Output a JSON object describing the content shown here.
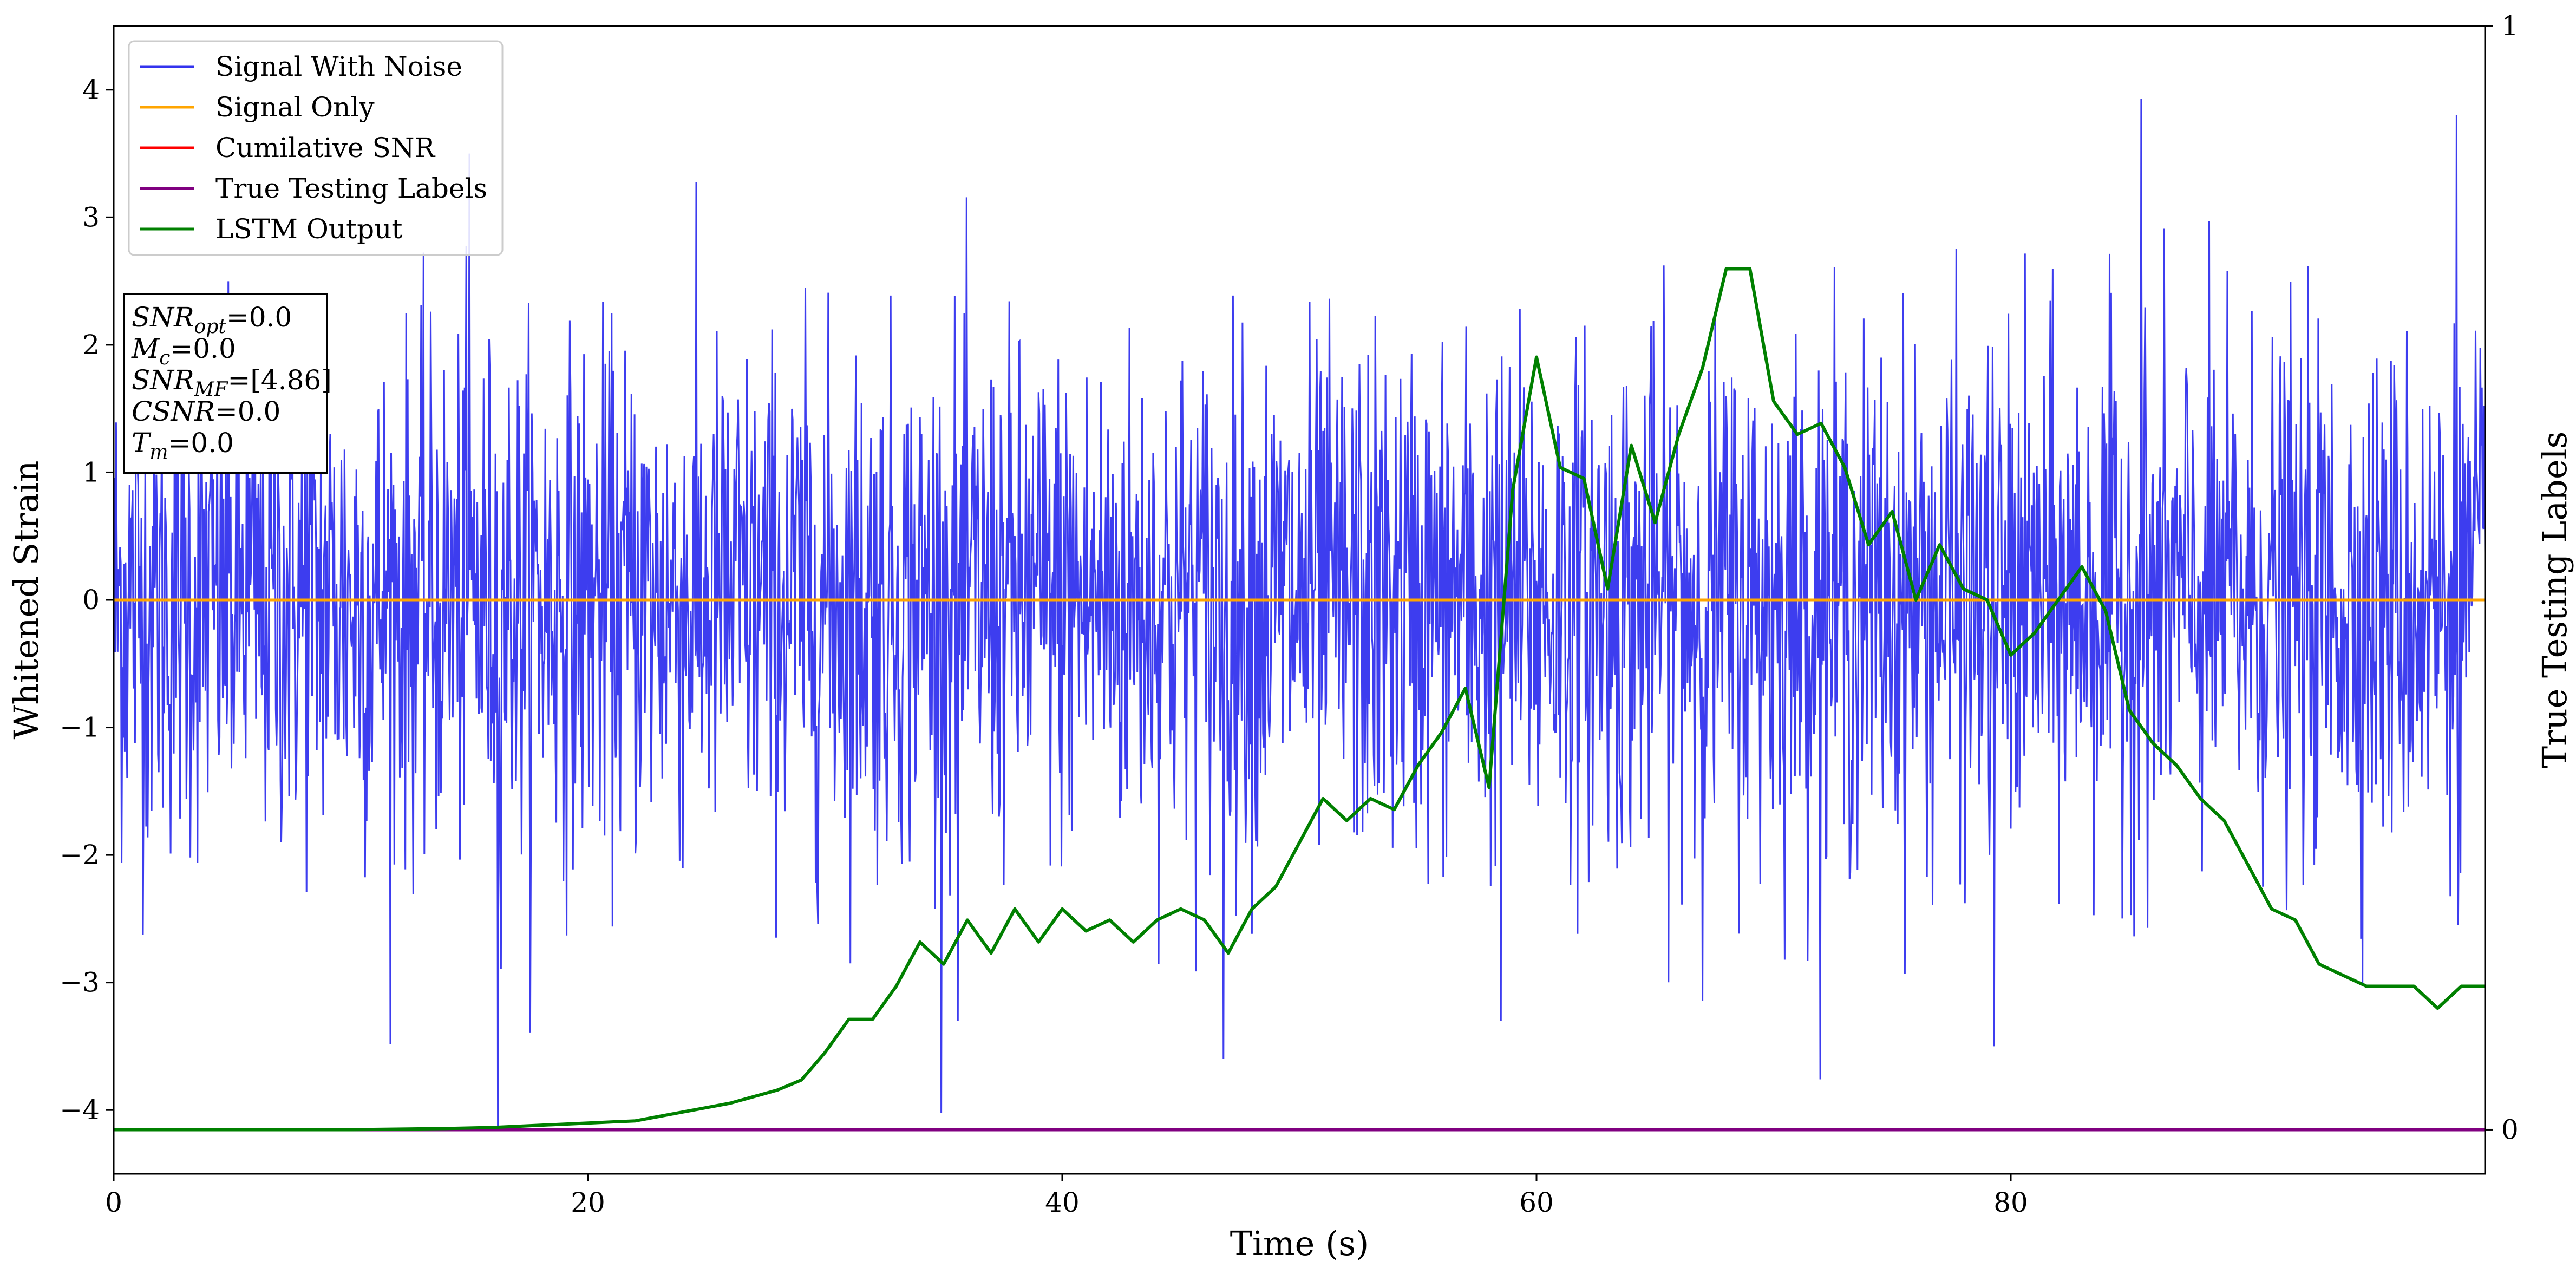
{
  "chart_data": {
    "type": "line",
    "xlabel": "Time (s)",
    "ylabel": "Whitened Strain",
    "y2label": "True Testing Labels",
    "xlim": [
      0,
      100
    ],
    "ylim": [
      -4.5,
      4.5
    ],
    "y2lim": [
      -0.04,
      1.0
    ],
    "x_ticks": [
      0,
      20,
      40,
      60,
      80
    ],
    "y_ticks": [
      -4,
      -3,
      -2,
      -1,
      0,
      1,
      2,
      3,
      4
    ],
    "y2_ticks": [
      0,
      1
    ],
    "grid": false,
    "legend_position": "top-left",
    "series": [
      {
        "name": "Signal With Noise",
        "color": "#3333ee",
        "axis": "left",
        "sample_rate_hz": 30,
        "amplitude_envelope": [
          -4.15,
          3.93
        ],
        "note_values": "dense noise around 0, mostly within ±2.7 with spikes near t=16.2 (-4.15), t=85.5 (3.93), t=79.3 (-3.5), t=46.8 (-3.6)"
      },
      {
        "name": "Signal Only",
        "color": "#ffa500",
        "axis": "left",
        "x": [
          0,
          100
        ],
        "y": [
          0,
          0
        ]
      },
      {
        "name": "Cumilative SNR",
        "color": "#ff0000",
        "axis": "right",
        "x": [],
        "y": []
      },
      {
        "name": "True Testing Labels",
        "color": "#800080",
        "axis": "right",
        "x": [
          0,
          100
        ],
        "y": [
          0,
          0
        ]
      },
      {
        "name": "LSTM Output",
        "color": "#008000",
        "axis": "right",
        "x": [
          0,
          10,
          14,
          16,
          18,
          20,
          22,
          23,
          24,
          25,
          26,
          27,
          28,
          29,
          30,
          31,
          32,
          33,
          34,
          35,
          36,
          37,
          38,
          39,
          40,
          41,
          42,
          43,
          44,
          45,
          46,
          47,
          48,
          49,
          50,
          51,
          52,
          53,
          54,
          55,
          56,
          57,
          58,
          59,
          60,
          61,
          62,
          63,
          64,
          65,
          66,
          67,
          68,
          69,
          70,
          71,
          72,
          73,
          74,
          75,
          76,
          77,
          78,
          79,
          80,
          81,
          82,
          83,
          84,
          85,
          86,
          87,
          88,
          89,
          90,
          91,
          92,
          93,
          94,
          95,
          96,
          97,
          98,
          99,
          100
        ],
        "y": [
          0.0,
          0.0,
          0.001,
          0.002,
          0.004,
          0.006,
          0.008,
          0.012,
          0.016,
          0.02,
          0.024,
          0.03,
          0.036,
          0.045,
          0.07,
          0.1,
          0.1,
          0.13,
          0.17,
          0.15,
          0.19,
          0.16,
          0.2,
          0.17,
          0.2,
          0.18,
          0.19,
          0.17,
          0.19,
          0.2,
          0.19,
          0.16,
          0.2,
          0.22,
          0.26,
          0.3,
          0.28,
          0.3,
          0.29,
          0.33,
          0.36,
          0.4,
          0.31,
          0.58,
          0.7,
          0.6,
          0.59,
          0.49,
          0.62,
          0.55,
          0.63,
          0.69,
          0.78,
          0.78,
          0.66,
          0.63,
          0.64,
          0.6,
          0.53,
          0.56,
          0.48,
          0.53,
          0.49,
          0.48,
          0.43,
          0.45,
          0.48,
          0.51,
          0.47,
          0.38,
          0.35,
          0.33,
          0.3,
          0.28,
          0.24,
          0.2,
          0.19,
          0.15,
          0.14,
          0.13,
          0.13,
          0.13,
          0.11,
          0.13,
          0.13
        ]
      }
    ],
    "annotation_lines": [
      {
        "text": "=0.0",
        "math_base": "SNR",
        "math_sub": "opt"
      },
      {
        "text": "=0.0",
        "math_base": "M",
        "math_sub": "c"
      },
      {
        "text": "=[4.86]",
        "math_base": "SNR",
        "math_sub": "MF"
      },
      {
        "text": "CSNR=0.0",
        "italic_prefix": "CSNR"
      },
      {
        "text": "=0.0",
        "math_base": "T",
        "math_sub": "m"
      }
    ]
  },
  "colors": {
    "noise": "#3333ee",
    "signal": "#ffa500",
    "csnr": "#ff0000",
    "labels": "#800080",
    "lstm": "#008000"
  }
}
